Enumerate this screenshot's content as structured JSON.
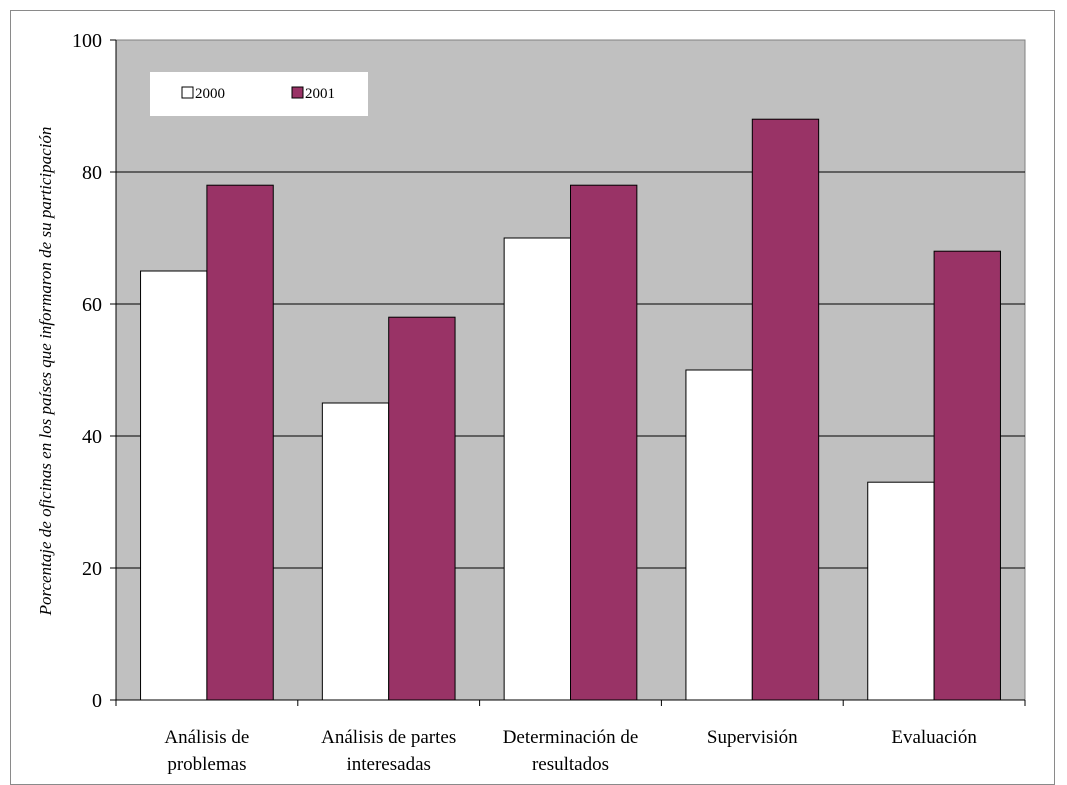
{
  "chart_data": {
    "type": "bar",
    "title": "",
    "xlabel": "",
    "ylabel": "Porcentaje de oficinas en los países que informaron de su participación",
    "ylim": [
      0,
      100
    ],
    "yticks": [
      0,
      20,
      40,
      60,
      80,
      100
    ],
    "grid": true,
    "legend_position": "top-left",
    "categories": [
      [
        "Análisis de",
        "problemas"
      ],
      [
        "Análisis de partes",
        "interesadas"
      ],
      [
        "Determinación de",
        "resultados"
      ],
      [
        "Supervisión"
      ],
      [
        "Evaluación"
      ]
    ],
    "series": [
      {
        "name": "2000",
        "color": "#ffffff",
        "values": [
          65,
          45,
          70,
          50,
          33
        ]
      },
      {
        "name": "2001",
        "color": "#993366",
        "values": [
          78,
          58,
          78,
          88,
          68
        ]
      }
    ],
    "plot_background": "#c0c0c0"
  }
}
